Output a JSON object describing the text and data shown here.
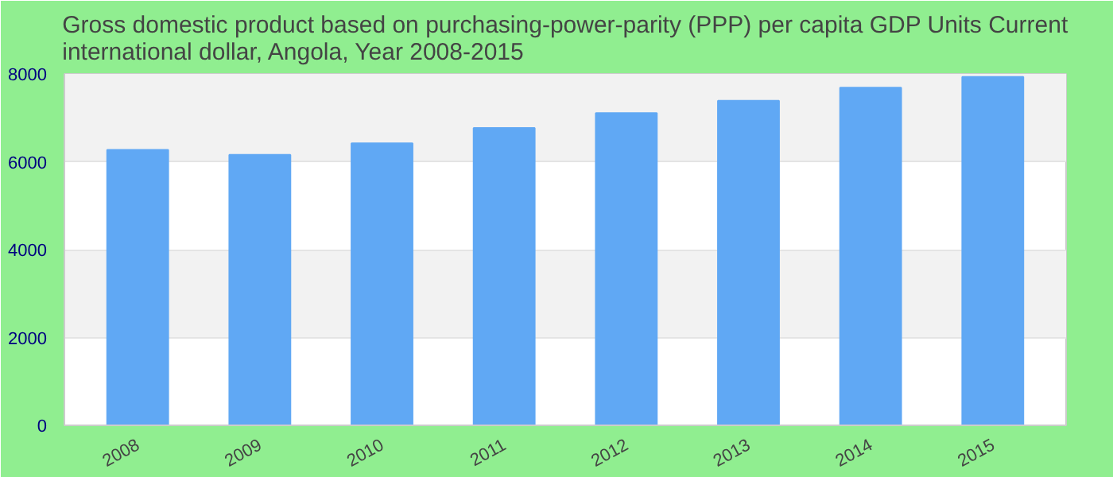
{
  "chart_data": {
    "type": "bar",
    "title": "Gross domestic product based on purchasing-power-parity (PPP) per capita GDP Units Current international dollar, Angola, Year 2008-2015",
    "categories": [
      "2008",
      "2009",
      "2010",
      "2011",
      "2012",
      "2013",
      "2014",
      "2015"
    ],
    "values": [
      6270,
      6160,
      6420,
      6770,
      7110,
      7390,
      7690,
      7930
    ],
    "color": "#60a8f4",
    "ylim": [
      0,
      8000
    ],
    "yticks": [
      0,
      2000,
      4000,
      6000,
      8000
    ],
    "grid": "y"
  }
}
